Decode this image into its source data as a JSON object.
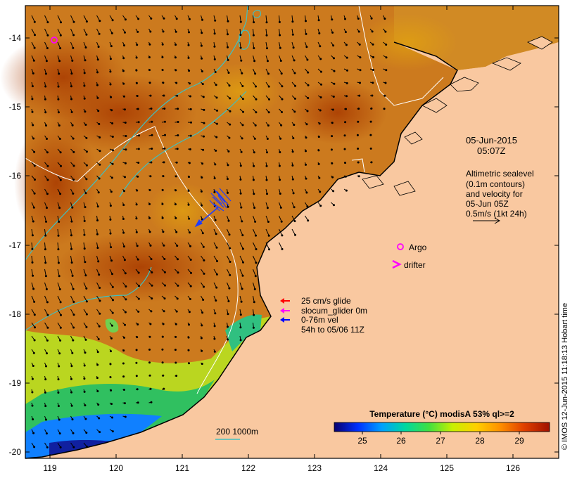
{
  "map": {
    "lon_ticks": [
      "119",
      "120",
      "121",
      "122",
      "123",
      "124",
      "125",
      "126"
    ],
    "lat_ticks": [
      "-14",
      "-15",
      "-16",
      "-17",
      "-18",
      "-19",
      "-20"
    ],
    "land_color": "#f9c8a0",
    "ocean_base_color": "#cc7a1e"
  },
  "timestamp": {
    "date": "05-Jun-2015",
    "time": "05:07Z"
  },
  "altimetry_note": {
    "line1": "Altimetric sealevel",
    "line2": "(0.1m contours)",
    "line3": "and velocity for",
    "line4": "05-Jun 05Z",
    "line5": "0.5m/s (1kt 24h)"
  },
  "legend": {
    "argo": "Argo",
    "drifter": "drifter",
    "glide": "25 cm/s glide",
    "slocum": "slocum_glider 0m",
    "vel": "0-76m vel",
    "vel_period": "54h to 05/06 11Z",
    "colors": {
      "argo": "#ff00ff",
      "drifter": "#ff00ff",
      "glide": "#ff0000",
      "slocum": "#ff00ff",
      "vel": "#0000ff"
    }
  },
  "scale_bar": {
    "label": "200  1000m"
  },
  "colorbar": {
    "title": "Temperature (°C) modisA 53% ql>=2",
    "ticks": [
      "25",
      "26",
      "27",
      "28",
      "29"
    ],
    "colors": [
      "#08006e",
      "#0030ff",
      "#00a0ff",
      "#00d8a0",
      "#40e040",
      "#c8f000",
      "#ffd000",
      "#ff9000",
      "#e04000",
      "#a01000"
    ]
  },
  "credit": "© IMOS 12-Jun-2015 11:18:13 Hobart time"
}
